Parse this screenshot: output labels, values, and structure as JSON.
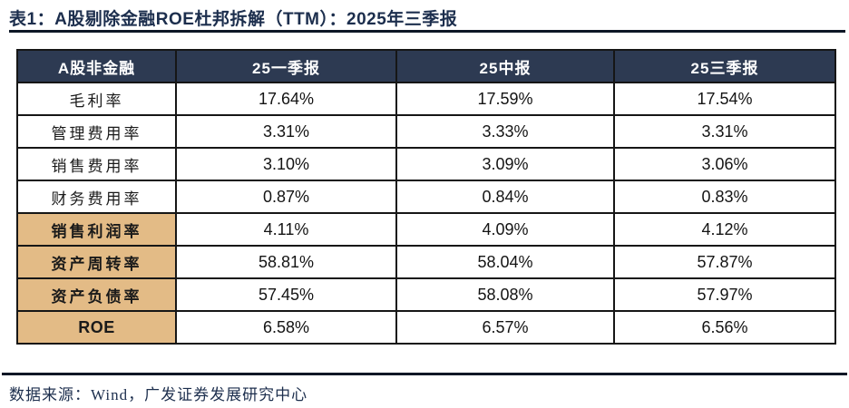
{
  "title": "表1：A股剔除金融ROE杜邦拆解（TTM）：2025年三季报",
  "source_note": "数据来源：Wind，广发证券发展研究中心",
  "colors": {
    "header_bg": "#2d3a52",
    "header_text": "#ffffff",
    "highlight_bg": "#e3bb86",
    "title_text": "#1c2e4d",
    "rule": "#0d1726",
    "cell_border": "#161616"
  },
  "chart_data": {
    "type": "table",
    "title": "A股剔除金融ROE杜邦拆解（TTM）：2025年三季报",
    "columns": [
      "A股非金融",
      "25一季报",
      "25中报",
      "25三季报"
    ],
    "rows": [
      {
        "label": "毛利率",
        "values": [
          "17.64%",
          "17.59%",
          "17.54%"
        ],
        "highlight": false
      },
      {
        "label": "管理费用率",
        "values": [
          "3.31%",
          "3.33%",
          "3.31%"
        ],
        "highlight": false
      },
      {
        "label": "销售费用率",
        "values": [
          "3.10%",
          "3.09%",
          "3.06%"
        ],
        "highlight": false
      },
      {
        "label": "财务费用率",
        "values": [
          "0.87%",
          "0.84%",
          "0.83%"
        ],
        "highlight": false
      },
      {
        "label": "销售利润率",
        "values": [
          "4.11%",
          "4.09%",
          "4.12%"
        ],
        "highlight": true
      },
      {
        "label": "资产周转率",
        "values": [
          "58.81%",
          "58.04%",
          "57.87%"
        ],
        "highlight": true
      },
      {
        "label": "资产负债率",
        "values": [
          "57.45%",
          "58.08%",
          "57.97%"
        ],
        "highlight": true
      },
      {
        "label": "ROE",
        "values": [
          "6.58%",
          "6.57%",
          "6.56%"
        ],
        "highlight": true
      }
    ]
  }
}
